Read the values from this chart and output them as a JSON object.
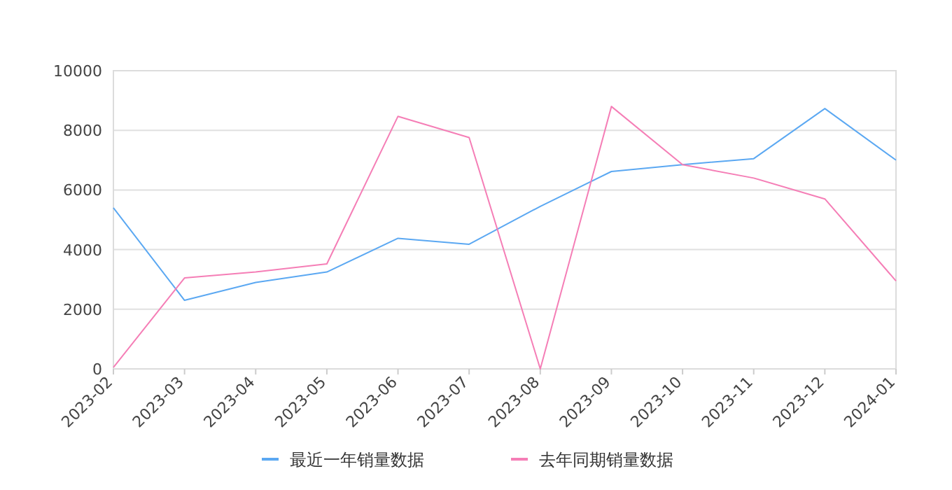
{
  "chart_data": {
    "type": "line",
    "categories": [
      "2023-02",
      "2023-03",
      "2023-04",
      "2023-05",
      "2023-06",
      "2023-07",
      "2023-08",
      "2023-09",
      "2023-10",
      "2023-11",
      "2023-12",
      "2024-01"
    ],
    "series": [
      {
        "name": "最近一年销量数据",
        "color": "#5ba8f2",
        "values": [
          5400,
          2300,
          2900,
          3250,
          4380,
          4180,
          5450,
          6620,
          6850,
          7050,
          8730,
          7000
        ]
      },
      {
        "name": "去年同期销量数据",
        "color": "#f57eb6",
        "values": [
          50,
          3050,
          3250,
          3520,
          8470,
          7760,
          0,
          8800,
          6850,
          6400,
          5700,
          2950
        ]
      }
    ],
    "ylim": [
      0,
      10000
    ],
    "yticks": [
      0,
      2000,
      4000,
      6000,
      8000,
      10000
    ],
    "grid": "y",
    "legend": "bottom",
    "marker": "none",
    "line_style": "solid"
  }
}
